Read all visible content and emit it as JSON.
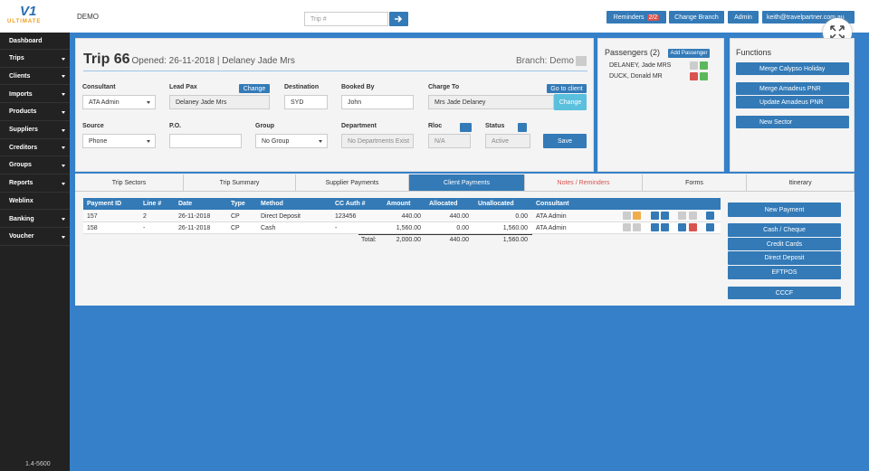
{
  "header": {
    "brand": "V1",
    "brand_sub": "ULTIMATE",
    "company": "DEMO",
    "search_placeholder": "Trip #",
    "reminders": "Reminders",
    "reminder_count": "2/2",
    "change_branch": "Change Branch",
    "admin": "Admin",
    "user": "keith@travelpartner.com.au"
  },
  "sidebar": {
    "items": [
      "Dashboard",
      "Trips",
      "Clients",
      "Imports",
      "Products",
      "Suppliers",
      "Creditors",
      "Groups",
      "Reports",
      "Weblinx",
      "Banking",
      "Voucher"
    ],
    "expandable": [
      false,
      true,
      true,
      true,
      true,
      true,
      true,
      true,
      true,
      false,
      true,
      true
    ],
    "version": "1.4-5600"
  },
  "trip": {
    "title": "Trip 66",
    "opened": "Opened: 26-11-2018 | Delaney Jade Mrs",
    "branch": "Branch: Demo",
    "consultant_label": "Consultant",
    "consultant": "ATA Admin",
    "lead_pax_label": "Lead Pax",
    "lead_pax": "Delaney Jade Mrs",
    "change_lead": "Change",
    "destination_label": "Destination",
    "destination": "SYD",
    "booked_by_label": "Booked By",
    "booked_by": "John",
    "charge_to_label": "Charge To",
    "charge_to": "Mrs Jade Delaney",
    "go_to_client": "Go to client",
    "change_charge": "Change",
    "source_label": "Source",
    "source": "Phone",
    "po_label": "P.O.",
    "group_label": "Group",
    "group": "No Group",
    "department_label": "Department",
    "department": "No Departments Exist",
    "reloc_label": "Rloc",
    "reloc": "N/A",
    "status_label": "Status",
    "status": "Active",
    "save": "Save"
  },
  "passengers": {
    "title": "Passengers (2)",
    "add": "Add Passenger",
    "list": [
      "DELANEY, Jade MRS",
      "DUCK, Donald MR"
    ]
  },
  "functions": {
    "title": "Functions",
    "buttons": [
      "Merge Calypso Holiday",
      "Merge Amadeus PNR",
      "Update Amadeus PNR",
      "New Sector"
    ]
  },
  "tabs": {
    "items": [
      "Trip Sectors",
      "Trip Summary",
      "Supplier Payments",
      "Client Payments",
      "Notes / Reminders",
      "Forms",
      "Itinerary"
    ],
    "active": 3
  },
  "table": {
    "headers": [
      "Payment ID",
      "Line #",
      "Date",
      "Type",
      "Method",
      "CC Auth #",
      "Amount",
      "Allocated",
      "Unallocated",
      "Consultant"
    ],
    "rows": [
      [
        "157",
        "2",
        "26-11-2018",
        "CP",
        "Direct Deposit",
        "123456",
        "440.00",
        "440.00",
        "0.00",
        "ATA Admin"
      ],
      [
        "158",
        "-",
        "26-11-2018",
        "CP",
        "Cash",
        "-",
        "1,560.00",
        "0.00",
        "1,560.00",
        "ATA Admin"
      ]
    ],
    "total_label": "Total:",
    "totals": [
      "2,000.00",
      "440.00",
      "1,560.00"
    ]
  },
  "payment_buttons": [
    "New Payment",
    "Cash / Cheque",
    "Credit Cards",
    "Direct Deposit",
    "EFTPOS",
    "CCCF"
  ]
}
